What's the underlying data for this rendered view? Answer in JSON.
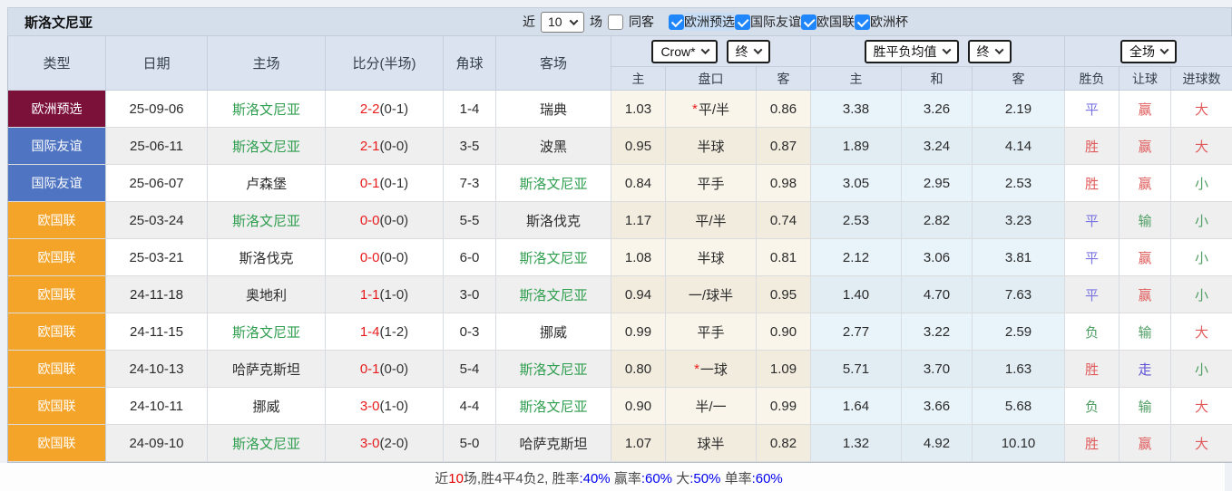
{
  "topbar": {
    "title": "斯洛文尼亚",
    "recent_label": "近",
    "matches_select": "10",
    "matches_label": "场",
    "same_venue_label": "同客",
    "same_venue_checked": false,
    "leagues": [
      {
        "label": "欧洲预选",
        "checked": true,
        "highlight": true
      },
      {
        "label": "国际友谊",
        "checked": true,
        "highlight": false
      },
      {
        "label": "欧国联",
        "checked": true,
        "highlight": false
      },
      {
        "label": "欧洲杯",
        "checked": true,
        "highlight": false
      }
    ]
  },
  "table": {
    "static_headers": [
      "类型",
      "日期",
      "主场",
      "比分(半场)",
      "角球",
      "客场"
    ],
    "groups": [
      {
        "dropdowns": [
          "Crow*",
          "终"
        ],
        "subcols": [
          "主",
          "盘口",
          "客"
        ]
      },
      {
        "dropdowns": [
          "胜平负均值",
          "终"
        ],
        "subcols": [
          "主",
          "和",
          "客"
        ]
      },
      {
        "dropdowns": [
          "全场"
        ],
        "subcols": [
          "胜负",
          "让球",
          "进球数"
        ]
      }
    ],
    "rows": [
      {
        "type": "欧洲预选",
        "type_color": "#7b1038",
        "date": "25-09-06",
        "home": "斯洛文尼亚",
        "home_hl": true,
        "score": "2-2",
        "half": "(0-1)",
        "corner": "1-4",
        "away": "瑞典",
        "away_hl": false,
        "o1": "1.03",
        "hcap": "平/半",
        "hcap_star": true,
        "o2": "0.86",
        "w1": "3.38",
        "w2": "3.26",
        "w3": "2.19",
        "r1": {
          "t": "平",
          "c": "blue"
        },
        "r2": {
          "t": "赢",
          "c": "red"
        },
        "r3": {
          "t": "大",
          "c": "red"
        }
      },
      {
        "type": "国际友谊",
        "type_color": "#4f74c2",
        "date": "25-06-11",
        "home": "斯洛文尼亚",
        "home_hl": true,
        "score": "2-1",
        "half": "(0-0)",
        "corner": "3-5",
        "away": "波黑",
        "away_hl": false,
        "o1": "0.95",
        "hcap": "半球",
        "hcap_star": false,
        "o2": "0.87",
        "w1": "1.89",
        "w2": "3.24",
        "w3": "4.14",
        "r1": {
          "t": "胜",
          "c": "red"
        },
        "r2": {
          "t": "赢",
          "c": "red"
        },
        "r3": {
          "t": "大",
          "c": "red"
        }
      },
      {
        "type": "国际友谊",
        "type_color": "#4f74c2",
        "date": "25-06-07",
        "home": "卢森堡",
        "home_hl": false,
        "score": "0-1",
        "half": "(0-1)",
        "corner": "7-3",
        "away": "斯洛文尼亚",
        "away_hl": true,
        "o1": "0.84",
        "hcap": "平手",
        "hcap_star": false,
        "o2": "0.98",
        "w1": "3.05",
        "w2": "2.95",
        "w3": "2.53",
        "r1": {
          "t": "胜",
          "c": "red"
        },
        "r2": {
          "t": "赢",
          "c": "red"
        },
        "r3": {
          "t": "小",
          "c": "green"
        }
      },
      {
        "type": "欧国联",
        "type_color": "#f5a42a",
        "date": "25-03-24",
        "home": "斯洛文尼亚",
        "home_hl": true,
        "score": "0-0",
        "half": "(0-0)",
        "corner": "5-5",
        "away": "斯洛伐克",
        "away_hl": false,
        "o1": "1.17",
        "hcap": "平/半",
        "hcap_star": false,
        "o2": "0.74",
        "w1": "2.53",
        "w2": "2.82",
        "w3": "3.23",
        "r1": {
          "t": "平",
          "c": "blue"
        },
        "r2": {
          "t": "输",
          "c": "green"
        },
        "r3": {
          "t": "小",
          "c": "green"
        }
      },
      {
        "type": "欧国联",
        "type_color": "#f5a42a",
        "date": "25-03-21",
        "home": "斯洛伐克",
        "home_hl": false,
        "score": "0-0",
        "half": "(0-0)",
        "corner": "6-0",
        "away": "斯洛文尼亚",
        "away_hl": true,
        "o1": "1.08",
        "hcap": "半球",
        "hcap_star": false,
        "o2": "0.81",
        "w1": "2.12",
        "w2": "3.06",
        "w3": "3.81",
        "r1": {
          "t": "平",
          "c": "blue"
        },
        "r2": {
          "t": "赢",
          "c": "red"
        },
        "r3": {
          "t": "小",
          "c": "green"
        }
      },
      {
        "type": "欧国联",
        "type_color": "#f5a42a",
        "date": "24-11-18",
        "home": "奥地利",
        "home_hl": false,
        "score": "1-1",
        "half": "(1-0)",
        "corner": "3-0",
        "away": "斯洛文尼亚",
        "away_hl": true,
        "o1": "0.94",
        "hcap": "一/球半",
        "hcap_star": false,
        "o2": "0.95",
        "w1": "1.40",
        "w2": "4.70",
        "w3": "7.63",
        "r1": {
          "t": "平",
          "c": "blue"
        },
        "r2": {
          "t": "赢",
          "c": "red"
        },
        "r3": {
          "t": "小",
          "c": "green"
        }
      },
      {
        "type": "欧国联",
        "type_color": "#f5a42a",
        "date": "24-11-15",
        "home": "斯洛文尼亚",
        "home_hl": true,
        "score": "1-4",
        "half": "(1-2)",
        "corner": "0-3",
        "away": "挪威",
        "away_hl": false,
        "o1": "0.99",
        "hcap": "平手",
        "hcap_star": false,
        "o2": "0.90",
        "w1": "2.77",
        "w2": "3.22",
        "w3": "2.59",
        "r1": {
          "t": "负",
          "c": "green"
        },
        "r2": {
          "t": "输",
          "c": "green"
        },
        "r3": {
          "t": "大",
          "c": "red"
        }
      },
      {
        "type": "欧国联",
        "type_color": "#f5a42a",
        "date": "24-10-13",
        "home": "哈萨克斯坦",
        "home_hl": false,
        "score": "0-1",
        "half": "(0-0)",
        "corner": "5-4",
        "away": "斯洛文尼亚",
        "away_hl": true,
        "o1": "0.80",
        "hcap": "一球",
        "hcap_star": true,
        "o2": "1.09",
        "w1": "5.71",
        "w2": "3.70",
        "w3": "1.63",
        "r1": {
          "t": "胜",
          "c": "red"
        },
        "r2": {
          "t": "走",
          "c": "violet"
        },
        "r3": {
          "t": "小",
          "c": "green"
        }
      },
      {
        "type": "欧国联",
        "type_color": "#f5a42a",
        "date": "24-10-11",
        "home": "挪威",
        "home_hl": false,
        "score": "3-0",
        "half": "(1-0)",
        "corner": "4-4",
        "away": "斯洛文尼亚",
        "away_hl": true,
        "o1": "0.90",
        "hcap": "半/一",
        "hcap_star": false,
        "o2": "0.99",
        "w1": "1.64",
        "w2": "3.66",
        "w3": "5.68",
        "r1": {
          "t": "负",
          "c": "green"
        },
        "r2": {
          "t": "输",
          "c": "green"
        },
        "r3": {
          "t": "大",
          "c": "red"
        }
      },
      {
        "type": "欧国联",
        "type_color": "#f5a42a",
        "date": "24-09-10",
        "home": "斯洛文尼亚",
        "home_hl": true,
        "score": "3-0",
        "half": "(2-0)",
        "corner": "5-0",
        "away": "哈萨克斯坦",
        "away_hl": false,
        "o1": "1.07",
        "hcap": "球半",
        "hcap_star": false,
        "o2": "0.82",
        "w1": "1.32",
        "w2": "4.92",
        "w3": "10.10",
        "r1": {
          "t": "胜",
          "c": "red"
        },
        "r2": {
          "t": "赢",
          "c": "red"
        },
        "r3": {
          "t": "大",
          "c": "red"
        }
      }
    ]
  },
  "footer": {
    "segments": [
      {
        "text": "近",
        "c": "dark"
      },
      {
        "text": "10",
        "c": "red"
      },
      {
        "text": "场,胜4平4负2, 胜率",
        "c": "dark"
      },
      {
        "text": ":40%",
        "c": "blue"
      },
      {
        "text": " 赢率",
        "c": "dark"
      },
      {
        "text": ":60%",
        "c": "blue"
      },
      {
        "text": " 大",
        "c": "dark"
      },
      {
        "text": ":50%",
        "c": "blue"
      },
      {
        "text": " 单率",
        "c": "dark"
      },
      {
        "text": ":60%",
        "c": "blue"
      }
    ]
  },
  "colors": {
    "result": {
      "red": "#e05c5c",
      "blue": "#7a74e0",
      "green": "#4f9e63",
      "violet": "#5b4fd6"
    },
    "score_red": "#e81c1c",
    "team_green": "#2f9e4f",
    "type_euro_qualifier": "#7b1038",
    "type_friendly": "#4f74c2",
    "type_nations_league": "#f5a42a",
    "checkbox_blue": "#2086fb",
    "stat_blue": "#0000ee",
    "stat_red": "#e60000"
  }
}
